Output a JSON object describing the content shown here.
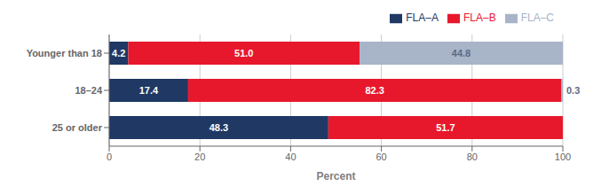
{
  "chart_data": {
    "type": "bar",
    "orientation": "horizontal",
    "stacked": true,
    "categories": [
      "Younger than 18",
      "18–24",
      "25 or older"
    ],
    "series": [
      {
        "name": "FLA–A",
        "color": "#1f3864",
        "values": [
          4.2,
          17.4,
          48.3
        ],
        "value_labels": [
          "4.2",
          "17.4",
          "48.3"
        ]
      },
      {
        "name": "FLA–B",
        "color": "#e8182c",
        "values": [
          51.0,
          82.3,
          51.7
        ],
        "value_labels": [
          "51.0",
          "82.3",
          "51.7"
        ]
      },
      {
        "name": "FLA–C",
        "color": "#a8b4c8",
        "values": [
          44.8,
          0.3,
          0.0
        ],
        "value_labels": [
          "44.8",
          "0.3",
          null
        ]
      }
    ],
    "xlabel": "Percent",
    "xlim": [
      0,
      100
    ],
    "xticks": [
      0,
      20,
      40,
      60,
      80,
      100
    ],
    "grid": true,
    "legend": "upper right",
    "data_labels": true
  }
}
